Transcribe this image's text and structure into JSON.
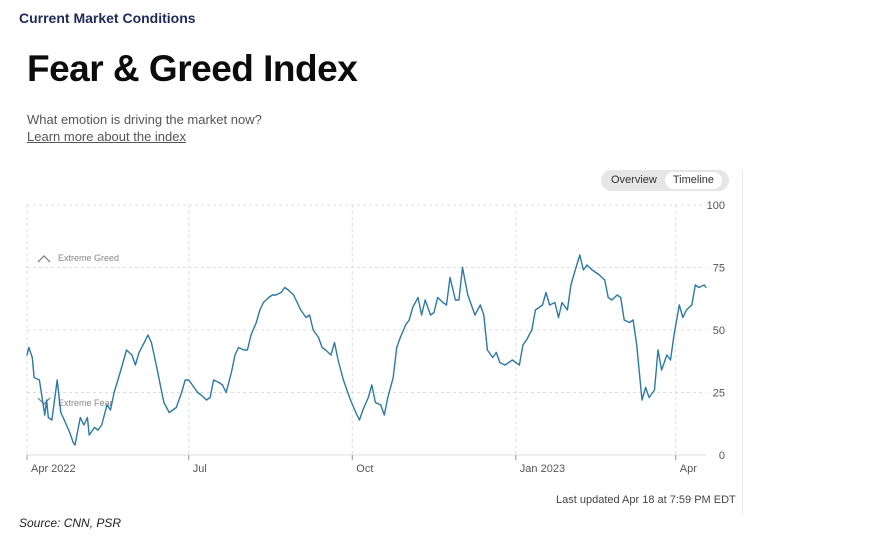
{
  "header": {
    "section_title": "Current Market Conditions",
    "title": "Fear & Greed Index",
    "subtitle": "What emotion is driving the market now?",
    "learn_link": "Learn more about the index"
  },
  "view_toggle": {
    "options": [
      "Overview",
      "Timeline"
    ],
    "selected": "Timeline"
  },
  "footer": {
    "last_updated": "Last updated Apr 18 at 7:59 PM EDT",
    "source": "Source: CNN, PSR"
  },
  "colors": {
    "line": "#2a7aa6",
    "grid": "#dddddd",
    "axis_text": "#555555",
    "zone_text": "#888888"
  },
  "icons": {
    "greed_zone": "chevron-up-icon",
    "fear_zone": "chevron-down-icon"
  },
  "chart_data": {
    "type": "line",
    "title": "Fear & Greed Index",
    "xlabel": "",
    "ylabel": "",
    "x_range": [
      "2022-04-01",
      "2023-04-18"
    ],
    "ylim": [
      0,
      100
    ],
    "y_ticks": [
      0,
      25,
      50,
      75,
      100
    ],
    "y_axis_position": "right",
    "x_ticks": [
      {
        "label": "Apr 2022",
        "date": "2022-04-01"
      },
      {
        "label": "Jul",
        "date": "2022-07-01"
      },
      {
        "label": "Oct",
        "date": "2022-10-01"
      },
      {
        "label": "Jan 2023",
        "date": "2023-01-01"
      },
      {
        "label": "Apr",
        "date": "2023-04-01"
      }
    ],
    "zones": [
      {
        "label": "Extreme Greed",
        "icon": "chevron-up-icon"
      },
      {
        "label": "Extreme Fear",
        "icon": "chevron-down-icon"
      }
    ],
    "grid": "dashed horizontal and vertical",
    "series": [
      {
        "values": [
          [
            "2022-04-01",
            40
          ],
          [
            "2022-04-02",
            43
          ],
          [
            "2022-04-04",
            39
          ],
          [
            "2022-04-05",
            31
          ],
          [
            "2022-04-08",
            30
          ],
          [
            "2022-04-11",
            16
          ],
          [
            "2022-04-12",
            22
          ],
          [
            "2022-04-13",
            15
          ],
          [
            "2022-04-15",
            14
          ],
          [
            "2022-04-18",
            30
          ],
          [
            "2022-04-20",
            17
          ],
          [
            "2022-04-22",
            14
          ],
          [
            "2022-04-25",
            9
          ],
          [
            "2022-04-27",
            5
          ],
          [
            "2022-04-28",
            4
          ],
          [
            "2022-05-01",
            15
          ],
          [
            "2022-05-03",
            12
          ],
          [
            "2022-05-05",
            15
          ],
          [
            "2022-05-06",
            8
          ],
          [
            "2022-05-09",
            11
          ],
          [
            "2022-05-11",
            10
          ],
          [
            "2022-05-13",
            12
          ],
          [
            "2022-05-16",
            20
          ],
          [
            "2022-05-18",
            18
          ],
          [
            "2022-05-20",
            25
          ],
          [
            "2022-05-23",
            32
          ],
          [
            "2022-05-25",
            37
          ],
          [
            "2022-05-27",
            42
          ],
          [
            "2022-05-30",
            40
          ],
          [
            "2022-06-01",
            36
          ],
          [
            "2022-06-03",
            41
          ],
          [
            "2022-06-06",
            45
          ],
          [
            "2022-06-08",
            48
          ],
          [
            "2022-06-10",
            45
          ],
          [
            "2022-06-13",
            35
          ],
          [
            "2022-06-15",
            28
          ],
          [
            "2022-06-17",
            21
          ],
          [
            "2022-06-20",
            17
          ],
          [
            "2022-06-22",
            18
          ],
          [
            "2022-06-24",
            19
          ],
          [
            "2022-06-27",
            25
          ],
          [
            "2022-06-29",
            30
          ],
          [
            "2022-07-01",
            30
          ],
          [
            "2022-07-04",
            27
          ],
          [
            "2022-07-06",
            25
          ],
          [
            "2022-07-08",
            24
          ],
          [
            "2022-07-11",
            22
          ],
          [
            "2022-07-13",
            23
          ],
          [
            "2022-07-15",
            30
          ],
          [
            "2022-07-18",
            29
          ],
          [
            "2022-07-20",
            28
          ],
          [
            "2022-07-22",
            25
          ],
          [
            "2022-07-25",
            33
          ],
          [
            "2022-07-27",
            40
          ],
          [
            "2022-07-29",
            43
          ],
          [
            "2022-08-01",
            42
          ],
          [
            "2022-08-03",
            42
          ],
          [
            "2022-08-05",
            48
          ],
          [
            "2022-08-08",
            53
          ],
          [
            "2022-08-10",
            58
          ],
          [
            "2022-08-12",
            61
          ],
          [
            "2022-08-15",
            63
          ],
          [
            "2022-08-17",
            64
          ],
          [
            "2022-08-19",
            64
          ],
          [
            "2022-08-22",
            65
          ],
          [
            "2022-08-24",
            67
          ],
          [
            "2022-08-26",
            66
          ],
          [
            "2022-08-29",
            64
          ],
          [
            "2022-08-31",
            61
          ],
          [
            "2022-09-02",
            58
          ],
          [
            "2022-09-05",
            55
          ],
          [
            "2022-09-07",
            56
          ],
          [
            "2022-09-09",
            50
          ],
          [
            "2022-09-12",
            47
          ],
          [
            "2022-09-14",
            43
          ],
          [
            "2022-09-16",
            42
          ],
          [
            "2022-09-19",
            40
          ],
          [
            "2022-09-21",
            45
          ],
          [
            "2022-09-23",
            38
          ],
          [
            "2022-09-26",
            30
          ],
          [
            "2022-09-28",
            26
          ],
          [
            "2022-09-30",
            22
          ],
          [
            "2022-10-03",
            17
          ],
          [
            "2022-10-05",
            14
          ],
          [
            "2022-10-07",
            18
          ],
          [
            "2022-10-10",
            23
          ],
          [
            "2022-10-12",
            28
          ],
          [
            "2022-10-14",
            21
          ],
          [
            "2022-10-17",
            20
          ],
          [
            "2022-10-19",
            16
          ],
          [
            "2022-10-21",
            23
          ],
          [
            "2022-10-24",
            31
          ],
          [
            "2022-10-26",
            43
          ],
          [
            "2022-10-28",
            47
          ],
          [
            "2022-10-31",
            52
          ],
          [
            "2022-11-02",
            54
          ],
          [
            "2022-11-04",
            59
          ],
          [
            "2022-11-07",
            63
          ],
          [
            "2022-11-09",
            56
          ],
          [
            "2022-11-11",
            62
          ],
          [
            "2022-11-14",
            56
          ],
          [
            "2022-11-16",
            57
          ],
          [
            "2022-11-18",
            63
          ],
          [
            "2022-11-21",
            61
          ],
          [
            "2022-11-23",
            60
          ],
          [
            "2022-11-25",
            71
          ],
          [
            "2022-11-28",
            62
          ],
          [
            "2022-11-30",
            62
          ],
          [
            "2022-12-02",
            75
          ],
          [
            "2022-12-05",
            64
          ],
          [
            "2022-12-07",
            60
          ],
          [
            "2022-12-09",
            56
          ],
          [
            "2022-12-12",
            60
          ],
          [
            "2022-12-14",
            56
          ],
          [
            "2022-12-16",
            42
          ],
          [
            "2022-12-19",
            39
          ],
          [
            "2022-12-21",
            41
          ],
          [
            "2022-12-23",
            37
          ],
          [
            "2022-12-26",
            36
          ],
          [
            "2022-12-28",
            37
          ],
          [
            "2022-12-30",
            38
          ],
          [
            "2023-01-03",
            36
          ],
          [
            "2023-01-05",
            44
          ],
          [
            "2023-01-07",
            46
          ],
          [
            "2023-01-10",
            50
          ],
          [
            "2023-01-12",
            58
          ],
          [
            "2023-01-16",
            60
          ],
          [
            "2023-01-18",
            65
          ],
          [
            "2023-01-20",
            60
          ],
          [
            "2023-01-23",
            61
          ],
          [
            "2023-01-25",
            55
          ],
          [
            "2023-01-27",
            61
          ],
          [
            "2023-01-30",
            58
          ],
          [
            "2023-02-01",
            68
          ],
          [
            "2023-02-03",
            73
          ],
          [
            "2023-02-06",
            80
          ],
          [
            "2023-02-08",
            74
          ],
          [
            "2023-02-10",
            76
          ],
          [
            "2023-02-13",
            74
          ],
          [
            "2023-02-15",
            73
          ],
          [
            "2023-02-17",
            72
          ],
          [
            "2023-02-20",
            70
          ],
          [
            "2023-02-22",
            63
          ],
          [
            "2023-02-24",
            62
          ],
          [
            "2023-02-27",
            64
          ],
          [
            "2023-03-01",
            63
          ],
          [
            "2023-03-03",
            54
          ],
          [
            "2023-03-06",
            53
          ],
          [
            "2023-03-08",
            54
          ],
          [
            "2023-03-10",
            44
          ],
          [
            "2023-03-13",
            22
          ],
          [
            "2023-03-15",
            27
          ],
          [
            "2023-03-17",
            23
          ],
          [
            "2023-03-20",
            26
          ],
          [
            "2023-03-22",
            42
          ],
          [
            "2023-03-24",
            34
          ],
          [
            "2023-03-27",
            40
          ],
          [
            "2023-03-29",
            38
          ],
          [
            "2023-03-31",
            48
          ],
          [
            "2023-04-03",
            60
          ],
          [
            "2023-04-05",
            55
          ],
          [
            "2023-04-07",
            58
          ],
          [
            "2023-04-10",
            60
          ],
          [
            "2023-04-12",
            68
          ],
          [
            "2023-04-14",
            67
          ],
          [
            "2023-04-17",
            68
          ],
          [
            "2023-04-18",
            67
          ]
        ]
      }
    ]
  }
}
